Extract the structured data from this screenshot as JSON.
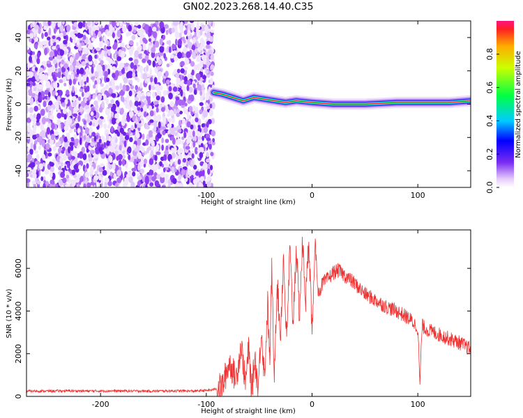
{
  "figure": {
    "title": "GN02.2023.268.14.40.C35"
  },
  "chart_data": [
    {
      "type": "heatmap",
      "title": "GN02.2023.268.14.40.C35",
      "xlabel": "Height of straight line (km)",
      "ylabel": "Frequency (Hz)",
      "xlim": [
        -270,
        150
      ],
      "ylim": [
        -50,
        50
      ],
      "x_ticks": [
        -200,
        -100,
        0,
        100
      ],
      "x_tick_labels": [
        "-200",
        "-100",
        "0",
        "100"
      ],
      "y_ticks": [
        -40,
        -20,
        0,
        20,
        40
      ],
      "y_tick_labels": [
        "-40",
        "-20",
        "0",
        "20",
        "40"
      ],
      "colorbar": {
        "label": "Normalized spectral amplitude",
        "range": [
          0,
          1
        ],
        "ticks": [
          0,
          0.2,
          0.4,
          0.6,
          0.8
        ],
        "tick_labels": [
          "0.0",
          "0.2",
          "0.4",
          "0.6",
          "0.8"
        ]
      },
      "noise_region": {
        "x_range": [
          -270,
          -93
        ],
        "amplitude_range": [
          0,
          0.3
        ]
      },
      "ridge": {
        "points": [
          {
            "x": -93,
            "y": 7
          },
          {
            "x": -85,
            "y": 6
          },
          {
            "x": -75,
            "y": 4
          },
          {
            "x": -65,
            "y": 2
          },
          {
            "x": -55,
            "y": 4
          },
          {
            "x": -45,
            "y": 3
          },
          {
            "x": -35,
            "y": 2
          },
          {
            "x": -25,
            "y": 1
          },
          {
            "x": -15,
            "y": 2
          },
          {
            "x": 0,
            "y": 1
          },
          {
            "x": 20,
            "y": 0
          },
          {
            "x": 50,
            "y": 0
          },
          {
            "x": 80,
            "y": 1
          },
          {
            "x": 95,
            "y": 1
          },
          {
            "x": 110,
            "y": 1
          },
          {
            "x": 130,
            "y": 1
          },
          {
            "x": 150,
            "y": 2
          }
        ]
      },
      "grid": false
    },
    {
      "type": "line",
      "xlabel": "Height of straight line (km)",
      "ylabel": "SNR (10 * v/v)",
      "xlim": [
        -270,
        150
      ],
      "ylim": [
        0,
        7800
      ],
      "x_ticks": [
        -200,
        -100,
        0,
        100
      ],
      "x_tick_labels": [
        "-200",
        "-100",
        "0",
        "100"
      ],
      "y_ticks": [
        0,
        2000,
        4000,
        6000
      ],
      "y_tick_labels": [
        "0",
        "2000",
        "4000",
        "6000"
      ],
      "color": "#ee3030",
      "series": [
        {
          "x": [
            -270,
            -250,
            -230,
            -210,
            -190,
            -170,
            -150,
            -130,
            -110,
            -95,
            -85,
            -78,
            -72,
            -67,
            -63,
            -60,
            -57,
            -54,
            -51,
            -48,
            -45,
            -42,
            -40,
            -38,
            -36,
            -33,
            -30,
            -27,
            -24,
            -21,
            -18,
            -15,
            -12,
            -9,
            -6,
            -3,
            0,
            3,
            6,
            10,
            15,
            20,
            25,
            30,
            35,
            40,
            50,
            60,
            70,
            80,
            90,
            95,
            100,
            102,
            104,
            110,
            120,
            130,
            140,
            150
          ],
          "y": [
            250,
            250,
            260,
            250,
            260,
            250,
            250,
            260,
            250,
            300,
            450,
            1600,
            800,
            2400,
            600,
            2200,
            300,
            1800,
            300,
            3200,
            900,
            4300,
            1500,
            6200,
            800,
            5400,
            2800,
            6500,
            2500,
            6900,
            3400,
            7000,
            3800,
            7200,
            4500,
            7400,
            3000,
            7100,
            4800,
            5300,
            5500,
            5800,
            5900,
            5700,
            5500,
            5300,
            4800,
            4500,
            4200,
            4000,
            3700,
            3500,
            3200,
            600,
            3300,
            3100,
            2900,
            2700,
            2500,
            2200
          ]
        }
      ],
      "grid": false
    }
  ]
}
